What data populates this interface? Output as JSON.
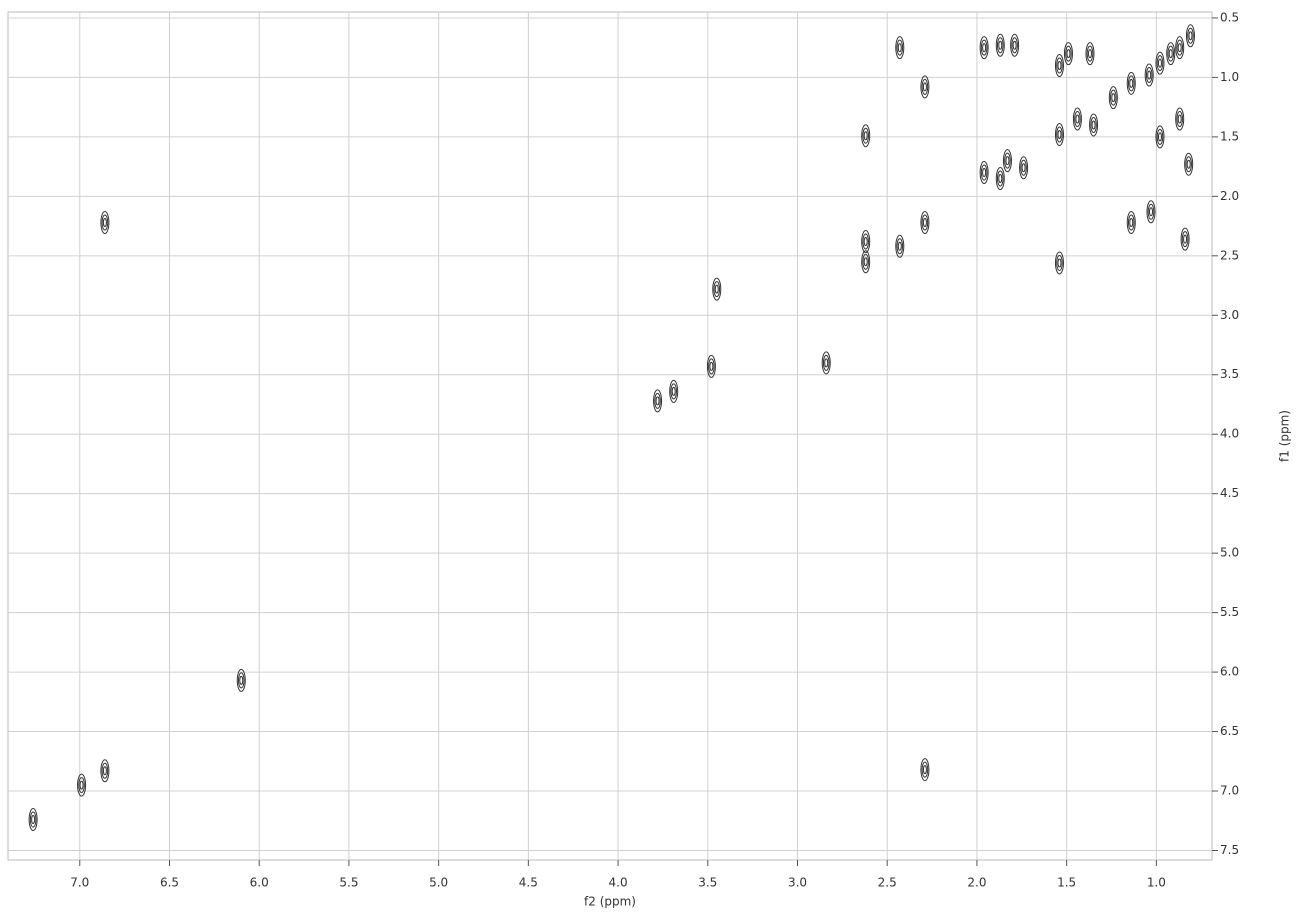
{
  "chart_data": {
    "type": "contour",
    "x_label": "f2 (ppm)",
    "y_label": "f1 (ppm)",
    "xlim": [
      7.4,
      0.69
    ],
    "ylim": [
      0.45,
      7.58
    ],
    "xticks": [
      {
        "value": 7,
        "label": "7.0"
      },
      6.5,
      {
        "value": 6,
        "label": "6.0"
      },
      5.5,
      {
        "value": 5,
        "label": "5.0"
      },
      4.5,
      {
        "value": 4,
        "label": "4.0"
      },
      3.5,
      {
        "value": 3,
        "label": "3.0"
      },
      2.5,
      {
        "value": 2,
        "label": "2.0"
      },
      1.5,
      {
        "value": 1,
        "label": "1.0"
      }
    ],
    "yticks": [
      0.5,
      {
        "value": 1,
        "label": "1.0"
      },
      1.5,
      {
        "value": 2,
        "label": "2.0"
      },
      2.5,
      {
        "value": 3,
        "label": "3.0"
      },
      3.5,
      {
        "value": 4,
        "label": "4.0"
      },
      4.5,
      {
        "value": 5,
        "label": "5.0"
      },
      5.5,
      {
        "value": 6,
        "label": "6.0"
      },
      6.5,
      {
        "value": 7,
        "label": "7.0"
      },
      7.5
    ],
    "grid": true,
    "color": "#333333",
    "x": [
      7.26,
      6.86,
      6.99,
      6.86,
      6.1,
      3.78,
      3.69,
      3.48,
      3.45,
      2.84,
      2.62,
      2.62,
      2.62,
      2.43,
      2.43,
      2.29,
      2.29,
      2.29,
      1.96,
      1.96,
      1.87,
      1.87,
      1.83,
      1.79,
      1.74,
      1.54,
      1.54,
      1.54,
      1.49,
      1.44,
      1.37,
      1.35,
      1.24,
      1.14,
      1.14,
      1.04,
      1.03,
      0.98,
      0.98,
      0.92,
      0.87,
      0.87,
      0.84,
      0.82,
      0.81
    ],
    "y": [
      7.24,
      6.83,
      6.95,
      2.22,
      6.07,
      3.72,
      3.64,
      3.43,
      2.78,
      3.4,
      1.49,
      2.38,
      2.55,
      0.75,
      2.42,
      1.08,
      2.22,
      6.82,
      0.75,
      1.8,
      0.73,
      1.85,
      1.7,
      0.73,
      1.76,
      0.9,
      1.48,
      2.56,
      0.8,
      1.35,
      0.8,
      1.4,
      1.17,
      1.05,
      2.22,
      0.98,
      2.13,
      0.88,
      1.5,
      0.8,
      0.75,
      1.35,
      2.36,
      1.73,
      0.65
    ]
  }
}
